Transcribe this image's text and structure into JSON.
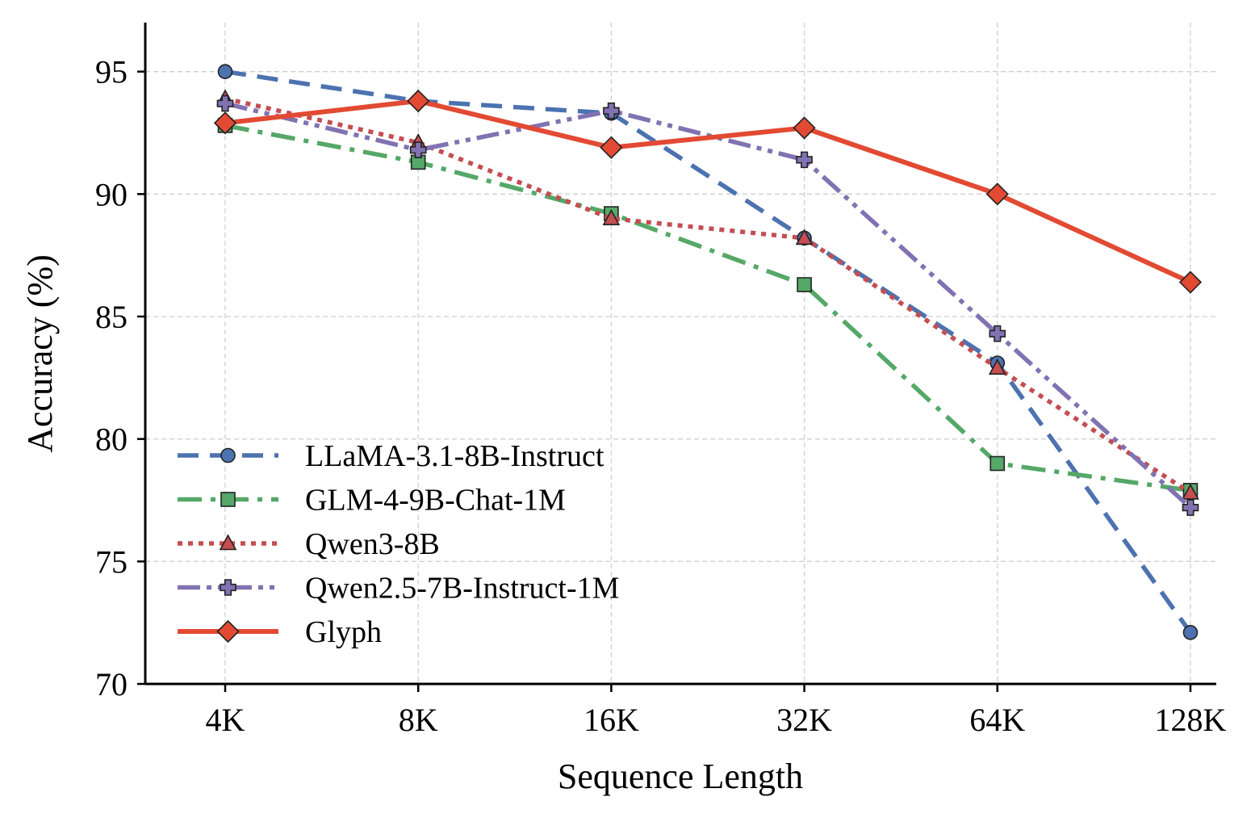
{
  "chart_data": {
    "type": "line",
    "title": "",
    "xlabel": "Sequence Length",
    "ylabel": "Accuracy (%)",
    "categories": [
      "4K",
      "8K",
      "16K",
      "32K",
      "64K",
      "128K"
    ],
    "ylim": [
      70,
      97
    ],
    "yticks": [
      70,
      75,
      80,
      85,
      90,
      95
    ],
    "grid": true,
    "legend_position": "lower-left",
    "series": [
      {
        "name": "LLaMA-3.1-8B-Instruct",
        "values": [
          95.0,
          93.8,
          93.3,
          88.2,
          83.1,
          72.1
        ],
        "color": "#4c72b0",
        "marker": "circle",
        "linestyle": "dashed"
      },
      {
        "name": "GLM-4-9B-Chat-1M",
        "values": [
          92.8,
          91.3,
          89.2,
          86.3,
          79.0,
          77.9
        ],
        "color": "#55a868",
        "marker": "square",
        "linestyle": "dashdot"
      },
      {
        "name": "Qwen3-8B",
        "values": [
          93.9,
          92.1,
          89.0,
          88.2,
          82.9,
          77.8
        ],
        "color": "#c44e52",
        "marker": "triangle",
        "linestyle": "dotted"
      },
      {
        "name": "Qwen2.5-7B-Instruct-1M",
        "values": [
          93.7,
          91.8,
          93.4,
          91.4,
          84.3,
          77.2
        ],
        "color": "#8172b2",
        "marker": "plus",
        "linestyle": "dashdotdot"
      },
      {
        "name": "Glyph",
        "values": [
          92.9,
          93.8,
          91.9,
          92.7,
          90.0,
          86.4
        ],
        "color": "#e24a33",
        "marker": "diamond",
        "linestyle": "solid"
      }
    ]
  }
}
